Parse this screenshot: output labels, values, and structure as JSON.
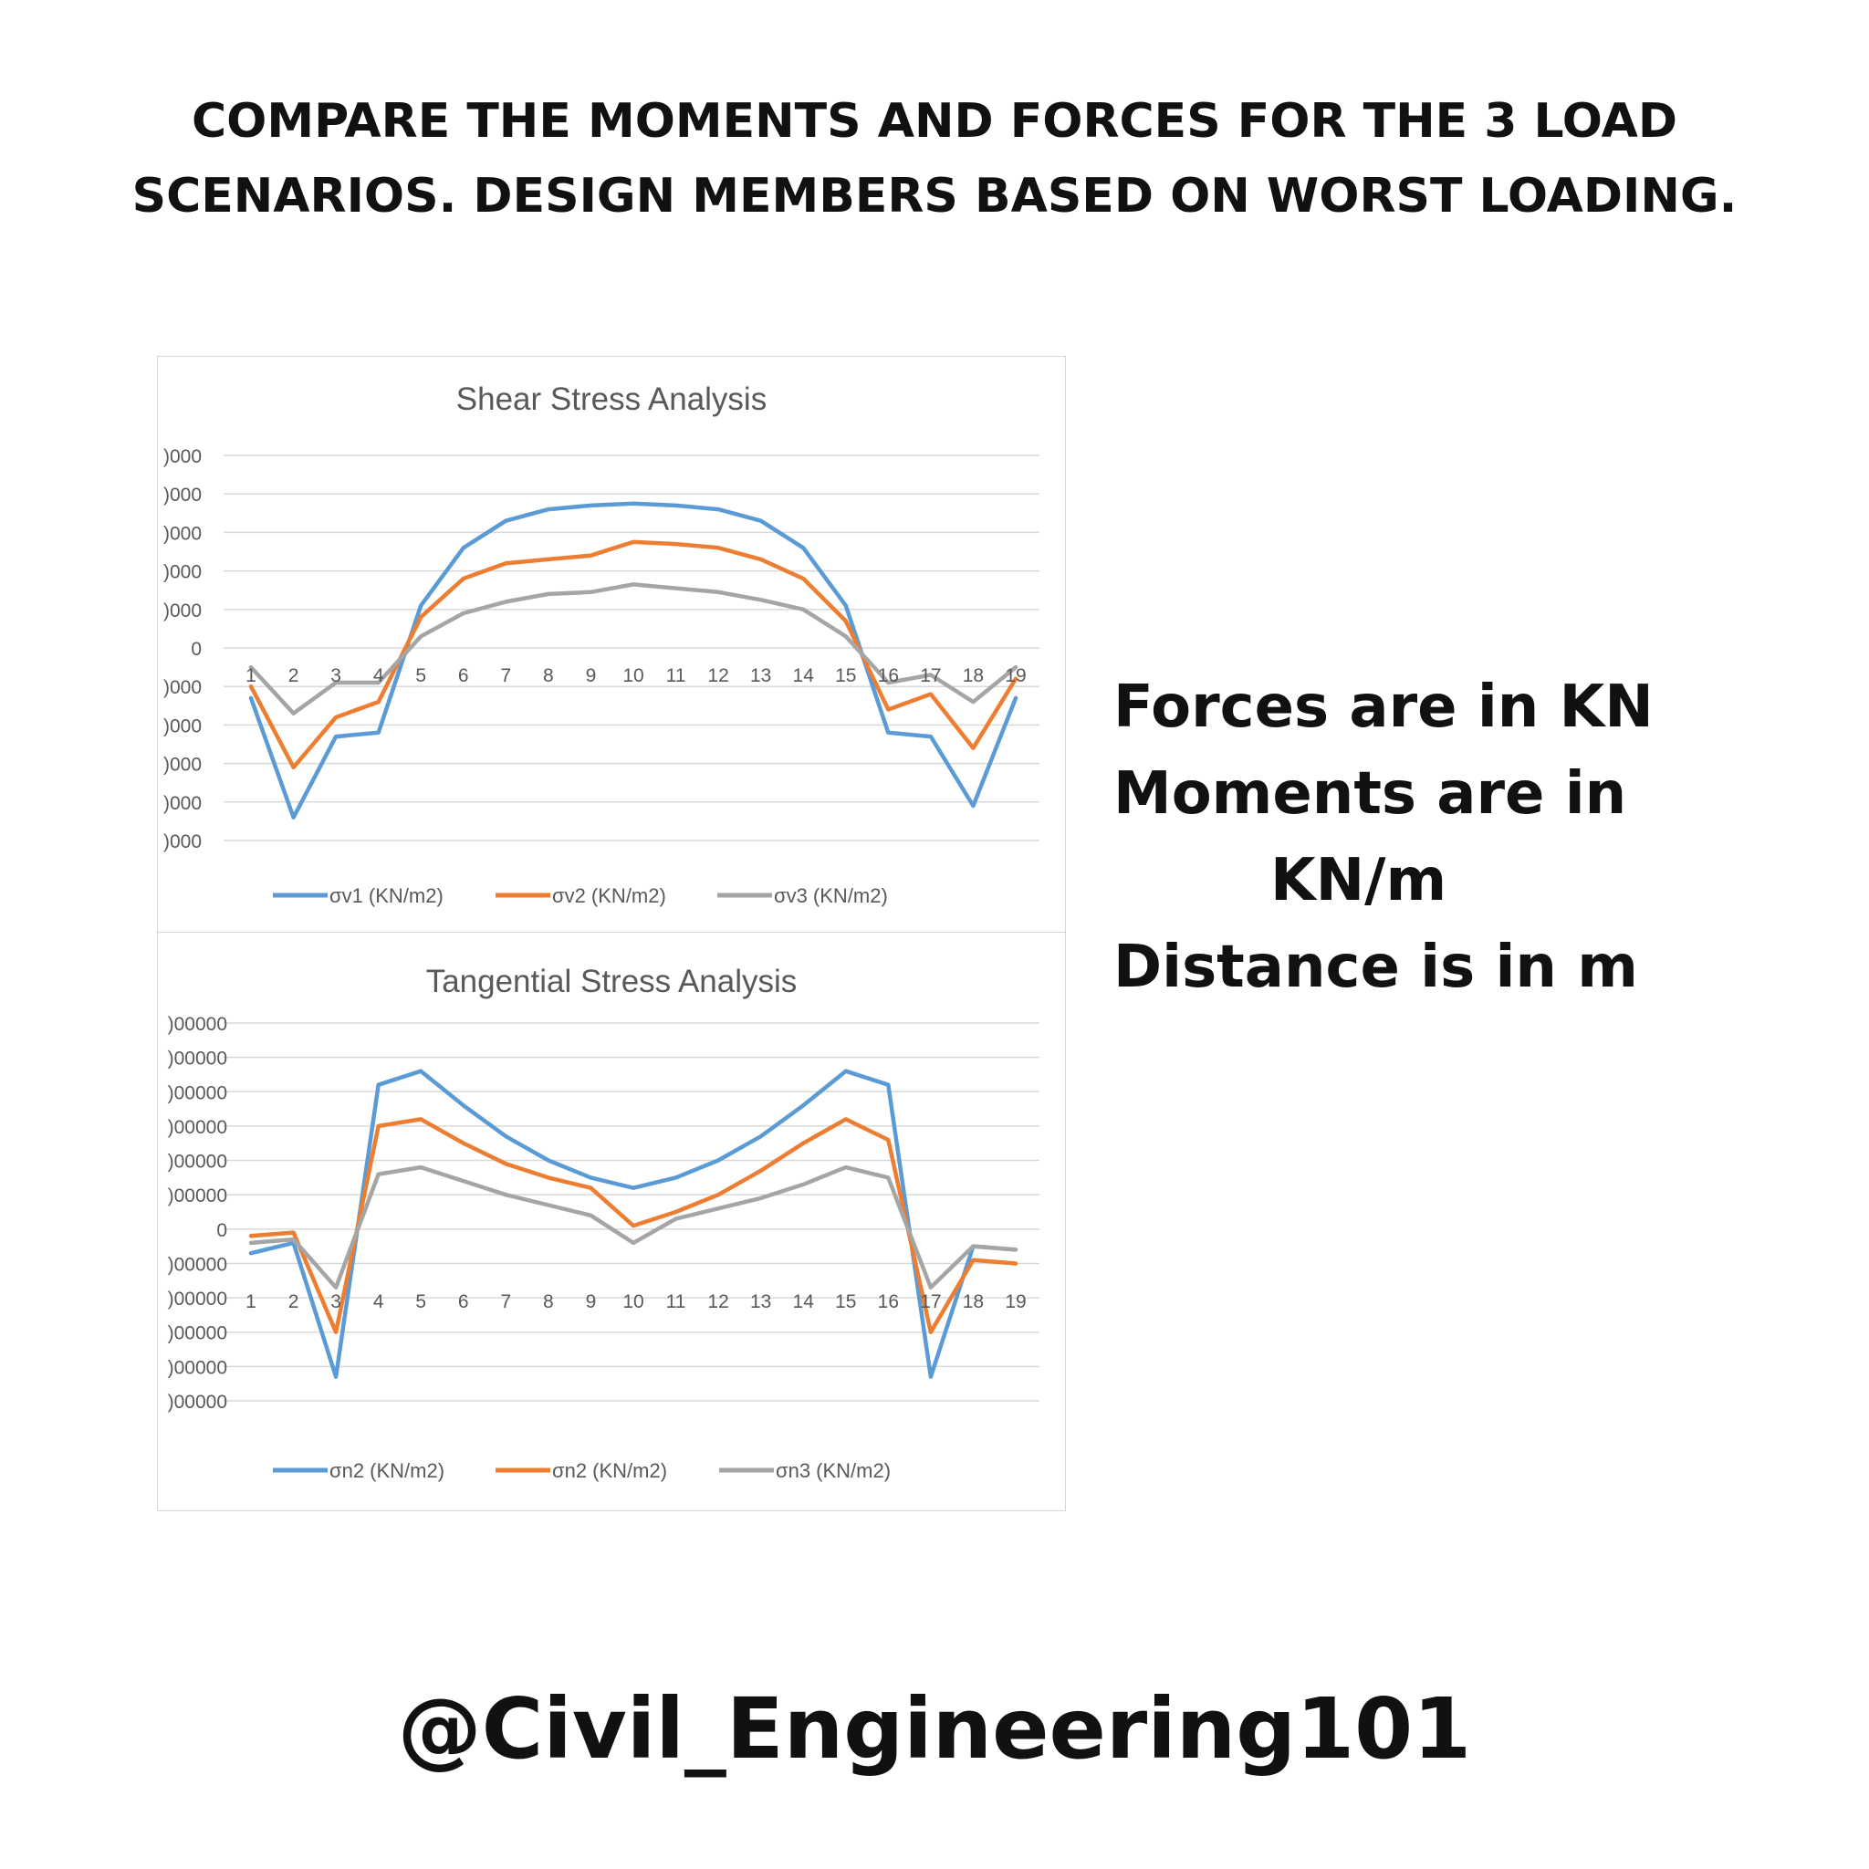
{
  "heading": {
    "line1": "COMPARE THE MOMENTS AND FORCES FOR THE 3 LOAD",
    "line2": "SCENARIOS. DESIGN MEMBERS BASED ON WORST LOADING.",
    "line3": "Forces are in KN"
  },
  "units_note": {
    "line1": "Forces are in KN",
    "line2": "Moments are in",
    "line3": "KN/m",
    "line4": "Distance is in m"
  },
  "handle": "@Civil_Engineering101",
  "colors": {
    "series1": "#5b9bd5",
    "series2": "#ed7d31",
    "series3": "#a5a5a5",
    "grid": "#d9d9d9",
    "text": "#595959"
  },
  "chart_data": [
    {
      "type": "line",
      "title": "Shear Stress Analysis",
      "categories": [
        "1",
        "2",
        "3",
        "4",
        "5",
        "6",
        "7",
        "8",
        "9",
        "10",
        "11",
        "12",
        "13",
        "14",
        "15",
        "16",
        "17",
        "18",
        "19"
      ],
      "y_tick_labels": [
        ")000",
        ")000",
        ")000",
        ")000",
        ")000",
        "0",
        ")000",
        ")000",
        ")000",
        ")000",
        ")000"
      ],
      "ylim": [
        -5,
        5
      ],
      "grid": true,
      "legend_position": "bottom",
      "series": [
        {
          "name": "σv1  (KN/m2)",
          "values": [
            -1.3,
            -4.4,
            -2.3,
            -2.2,
            1.1,
            2.6,
            3.3,
            3.6,
            3.7,
            3.75,
            3.7,
            3.6,
            3.3,
            2.6,
            1.1,
            -2.2,
            -2.3,
            -4.1,
            -1.3
          ]
        },
        {
          "name": "σv2  (KN/m2)",
          "values": [
            -1.0,
            -3.1,
            -1.8,
            -1.4,
            0.8,
            1.8,
            2.2,
            2.3,
            2.4,
            2.75,
            2.7,
            2.6,
            2.3,
            1.8,
            0.7,
            -1.6,
            -1.2,
            -2.6,
            -0.8
          ]
        },
        {
          "name": "σv3  (KN/m2)",
          "values": [
            -0.5,
            -1.7,
            -0.9,
            -0.9,
            0.3,
            0.9,
            1.2,
            1.4,
            1.45,
            1.65,
            1.55,
            1.45,
            1.25,
            1.0,
            0.3,
            -0.9,
            -0.7,
            -1.4,
            -0.5
          ]
        }
      ]
    },
    {
      "type": "line",
      "title": "Tangential Stress Analysis",
      "categories": [
        "1",
        "2",
        "3",
        "4",
        "5",
        "6",
        "7",
        "8",
        "9",
        "10",
        "11",
        "12",
        "13",
        "14",
        "15",
        "16",
        "17",
        "18",
        "19"
      ],
      "y_tick_labels": [
        ")00000",
        ")00000",
        ")00000",
        ")00000",
        ")00000",
        ")00000",
        "0",
        ")00000",
        ")00000",
        ")00000",
        ")00000",
        ")00000"
      ],
      "ylim": [
        -5,
        6
      ],
      "grid": true,
      "legend_position": "bottom",
      "series": [
        {
          "name": "σn2  (KN/m2)",
          "values": [
            -0.7,
            -0.4,
            -4.3,
            4.2,
            4.6,
            3.6,
            2.7,
            2.0,
            1.5,
            1.2,
            1.5,
            2.0,
            2.7,
            3.6,
            4.6,
            4.2,
            -4.3,
            -0.5,
            -0.6
          ]
        },
        {
          "name": "σn2  (KN/m2)",
          "values": [
            -0.2,
            -0.1,
            -3.0,
            3.0,
            3.2,
            2.5,
            1.9,
            1.5,
            1.2,
            0.1,
            0.5,
            1.0,
            1.7,
            2.5,
            3.2,
            2.6,
            -3.0,
            -0.9,
            -1.0
          ]
        },
        {
          "name": "σn3  (KN/m2)",
          "values": [
            -0.4,
            -0.3,
            -1.7,
            1.6,
            1.8,
            1.4,
            1.0,
            0.7,
            0.4,
            -0.4,
            0.3,
            0.6,
            0.9,
            1.3,
            1.8,
            1.5,
            -1.7,
            -0.5,
            -0.6
          ]
        }
      ]
    }
  ]
}
